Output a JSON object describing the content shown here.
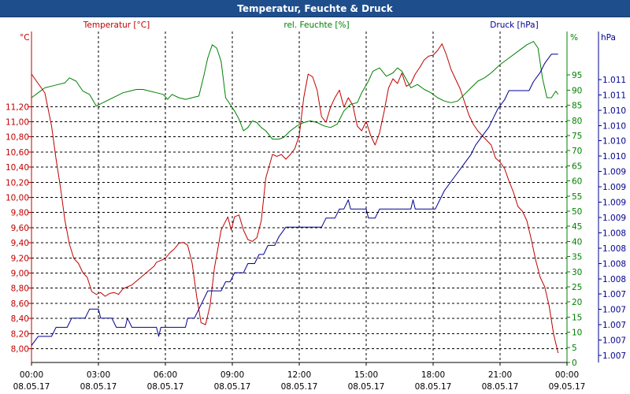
{
  "window": {
    "title": "Temperatur, Feuchte & Druck"
  },
  "colors": {
    "temperature": "#c00000",
    "humidity": "#008000",
    "pressure": "#000090",
    "axis_x": "#000000",
    "grid": "#000000",
    "titlebar": "#1f4e8c"
  },
  "chart_data": {
    "type": "line",
    "title": "Temperatur, Feuchte & Druck",
    "grid": true,
    "x_ticks": [
      {
        "time": "00:00",
        "date": "08.05.17"
      },
      {
        "time": "03:00",
        "date": "08.05.17"
      },
      {
        "time": "06:00",
        "date": "08.05.17"
      },
      {
        "time": "09:00",
        "date": "08.05.17"
      },
      {
        "time": "12:00",
        "date": "08.05.17"
      },
      {
        "time": "15:00",
        "date": "08.05.17"
      },
      {
        "time": "18:00",
        "date": "08.05.17"
      },
      {
        "time": "21:00",
        "date": "08.05.17"
      },
      {
        "time": "00:00",
        "date": "09.05.17"
      }
    ],
    "x_range_hours": [
      0,
      24
    ],
    "axes": {
      "temperature": {
        "label": "Temperatur [°C]",
        "unit": "°C",
        "range": [
          7.9,
          11.4
        ],
        "ticks": [
          "8,00",
          "8,20",
          "8,40",
          "8,60",
          "8,80",
          "9,00",
          "9,20",
          "9,40",
          "9,60",
          "9,80",
          "10,00",
          "10,20",
          "10,40",
          "10,60",
          "10,80",
          "11,00",
          "11,20"
        ]
      },
      "humidity": {
        "label": "rel. Feuchte [%]",
        "unit": "%",
        "range": [
          0,
          100
        ],
        "ticks": [
          "0",
          "5",
          "10",
          "15",
          "20",
          "25",
          "30",
          "35",
          "40",
          "45",
          "50",
          "55",
          "60",
          "65",
          "70",
          "75",
          "80",
          "85",
          "90",
          "95"
        ]
      },
      "pressure": {
        "label": "Druck [hPa]",
        "unit": "hPa",
        "ticks": [
          "1.007",
          "1.007",
          "1.007",
          "1.007",
          "1.007",
          "1.008",
          "1.008",
          "1.008",
          "1.008",
          "1.009",
          "1.009",
          "1.009",
          "1.009",
          "1.010",
          "1.010",
          "1.010",
          "1.010",
          "1.011",
          "1.011"
        ]
      }
    },
    "series": [
      {
        "name": "Temperatur [°C]",
        "axis": "temperature",
        "points": [
          [
            0,
            10.95
          ],
          [
            0.3,
            10.85
          ],
          [
            0.6,
            10.75
          ],
          [
            0.9,
            10.4
          ],
          [
            1.1,
            10.05
          ],
          [
            1.3,
            9.75
          ],
          [
            1.5,
            9.4
          ],
          [
            1.7,
            9.15
          ],
          [
            1.9,
            9.0
          ],
          [
            2.1,
            8.95
          ],
          [
            2.3,
            8.85
          ],
          [
            2.5,
            8.8
          ],
          [
            2.7,
            8.65
          ],
          [
            2.9,
            8.62
          ],
          [
            3.1,
            8.64
          ],
          [
            3.3,
            8.6
          ],
          [
            3.5,
            8.63
          ],
          [
            3.7,
            8.64
          ],
          [
            3.9,
            8.62
          ],
          [
            4.1,
            8.68
          ],
          [
            4.3,
            8.7
          ],
          [
            4.5,
            8.72
          ],
          [
            4.7,
            8.76
          ],
          [
            4.9,
            8.8
          ],
          [
            5.1,
            8.84
          ],
          [
            5.3,
            8.88
          ],
          [
            5.5,
            8.92
          ],
          [
            5.6,
            8.96
          ],
          [
            5.8,
            8.98
          ],
          [
            6.0,
            9.0
          ],
          [
            6.2,
            9.06
          ],
          [
            6.4,
            9.1
          ],
          [
            6.6,
            9.16
          ],
          [
            6.8,
            9.17
          ],
          [
            7.0,
            9.14
          ],
          [
            7.2,
            8.95
          ],
          [
            7.4,
            8.6
          ],
          [
            7.6,
            8.32
          ],
          [
            7.8,
            8.3
          ],
          [
            8.0,
            8.5
          ],
          [
            8.2,
            8.9
          ],
          [
            8.5,
            9.3
          ],
          [
            8.8,
            9.44
          ],
          [
            8.95,
            9.3
          ],
          [
            9.1,
            9.44
          ],
          [
            9.3,
            9.46
          ],
          [
            9.5,
            9.3
          ],
          [
            9.7,
            9.2
          ],
          [
            9.9,
            9.18
          ],
          [
            10.1,
            9.22
          ],
          [
            10.3,
            9.4
          ],
          [
            10.5,
            9.85
          ],
          [
            10.8,
            10.1
          ],
          [
            11.0,
            10.08
          ],
          [
            11.2,
            10.1
          ],
          [
            11.4,
            10.05
          ],
          [
            11.6,
            10.1
          ],
          [
            11.8,
            10.16
          ],
          [
            12.0,
            10.3
          ],
          [
            12.2,
            10.7
          ],
          [
            12.4,
            10.95
          ],
          [
            12.6,
            10.92
          ],
          [
            12.8,
            10.78
          ],
          [
            13.0,
            10.5
          ],
          [
            13.2,
            10.44
          ],
          [
            13.4,
            10.6
          ],
          [
            13.6,
            10.7
          ],
          [
            13.8,
            10.78
          ],
          [
            14.0,
            10.6
          ],
          [
            14.2,
            10.7
          ],
          [
            14.4,
            10.62
          ],
          [
            14.6,
            10.4
          ],
          [
            14.8,
            10.35
          ],
          [
            15.0,
            10.45
          ],
          [
            15.2,
            10.3
          ],
          [
            15.4,
            10.2
          ],
          [
            15.6,
            10.33
          ],
          [
            15.8,
            10.55
          ],
          [
            16.0,
            10.8
          ],
          [
            16.2,
            10.9
          ],
          [
            16.4,
            10.85
          ],
          [
            16.6,
            10.96
          ],
          [
            16.8,
            10.82
          ],
          [
            17.0,
            10.85
          ],
          [
            17.2,
            10.95
          ],
          [
            17.4,
            11.02
          ],
          [
            17.6,
            11.1
          ],
          [
            17.8,
            11.14
          ],
          [
            18.0,
            11.15
          ],
          [
            18.2,
            11.2
          ],
          [
            18.4,
            11.27
          ],
          [
            18.6,
            11.15
          ],
          [
            18.8,
            11.0
          ],
          [
            19.0,
            10.9
          ],
          [
            19.2,
            10.8
          ],
          [
            19.4,
            10.66
          ],
          [
            19.6,
            10.52
          ],
          [
            19.8,
            10.42
          ],
          [
            20.0,
            10.35
          ],
          [
            20.2,
            10.3
          ],
          [
            20.4,
            10.25
          ],
          [
            20.6,
            10.2
          ],
          [
            20.8,
            10.06
          ],
          [
            21.0,
            10.02
          ],
          [
            21.2,
            9.95
          ],
          [
            21.4,
            9.82
          ],
          [
            21.6,
            9.7
          ],
          [
            21.8,
            9.55
          ],
          [
            22.0,
            9.5
          ],
          [
            22.2,
            9.4
          ],
          [
            22.4,
            9.2
          ],
          [
            22.6,
            8.98
          ],
          [
            22.8,
            8.8
          ],
          [
            23.0,
            8.7
          ],
          [
            23.2,
            8.5
          ],
          [
            23.4,
            8.2
          ],
          [
            23.6,
            8.0
          ]
        ]
      },
      {
        "name": "rel. Feuchte [%]",
        "axis": "humidity",
        "points": [
          [
            0,
            80
          ],
          [
            0.3,
            81.5
          ],
          [
            0.6,
            83
          ],
          [
            0.9,
            83.5
          ],
          [
            1.2,
            84
          ],
          [
            1.5,
            84.5
          ],
          [
            1.7,
            86
          ],
          [
            2.0,
            85
          ],
          [
            2.3,
            82
          ],
          [
            2.6,
            81
          ],
          [
            2.9,
            77.5
          ],
          [
            3.2,
            78.5
          ],
          [
            3.5,
            79.5
          ],
          [
            3.8,
            80.5
          ],
          [
            4.1,
            81.5
          ],
          [
            4.4,
            82
          ],
          [
            4.7,
            82.5
          ],
          [
            5.0,
            82.5
          ],
          [
            5.3,
            82
          ],
          [
            5.6,
            81.5
          ],
          [
            5.9,
            81
          ],
          [
            6.1,
            79.5
          ],
          [
            6.3,
            81
          ],
          [
            6.6,
            80
          ],
          [
            6.9,
            79.5
          ],
          [
            7.2,
            80
          ],
          [
            7.5,
            80.5
          ],
          [
            7.7,
            86
          ],
          [
            7.9,
            92
          ],
          [
            8.1,
            96
          ],
          [
            8.3,
            95
          ],
          [
            8.5,
            91
          ],
          [
            8.7,
            80
          ],
          [
            8.9,
            78
          ],
          [
            9.1,
            76
          ],
          [
            9.3,
            73.5
          ],
          [
            9.5,
            70
          ],
          [
            9.7,
            71
          ],
          [
            9.9,
            73
          ],
          [
            10.1,
            72.5
          ],
          [
            10.3,
            71
          ],
          [
            10.5,
            70
          ],
          [
            10.8,
            67.5
          ],
          [
            11.1,
            67.5
          ],
          [
            11.3,
            68
          ],
          [
            11.6,
            70
          ],
          [
            11.9,
            71.5
          ],
          [
            12.2,
            72.5
          ],
          [
            12.5,
            73
          ],
          [
            12.8,
            72.5
          ],
          [
            13.1,
            71.5
          ],
          [
            13.4,
            71
          ],
          [
            13.7,
            72
          ],
          [
            14.0,
            76
          ],
          [
            14.3,
            78
          ],
          [
            14.6,
            78.5
          ],
          [
            14.8,
            81.5
          ],
          [
            15.1,
            85
          ],
          [
            15.3,
            88
          ],
          [
            15.6,
            89
          ],
          [
            15.9,
            86.5
          ],
          [
            16.2,
            87.5
          ],
          [
            16.4,
            89
          ],
          [
            16.6,
            88
          ],
          [
            16.8,
            85.5
          ],
          [
            17.0,
            83
          ],
          [
            17.3,
            84
          ],
          [
            17.6,
            82.5
          ],
          [
            17.9,
            81.5
          ],
          [
            18.2,
            80
          ],
          [
            18.5,
            79
          ],
          [
            18.8,
            78.5
          ],
          [
            19.1,
            79
          ],
          [
            19.4,
            81
          ],
          [
            19.7,
            83
          ],
          [
            20.0,
            85
          ],
          [
            20.3,
            86
          ],
          [
            20.6,
            87.5
          ],
          [
            21.0,
            90
          ],
          [
            21.4,
            92
          ],
          [
            21.8,
            94
          ],
          [
            22.2,
            96
          ],
          [
            22.5,
            97
          ],
          [
            22.7,
            95
          ],
          [
            22.9,
            86
          ],
          [
            23.1,
            80
          ],
          [
            23.3,
            80
          ],
          [
            23.5,
            82
          ],
          [
            23.6,
            81
          ]
        ]
      },
      {
        "name": "Druck [hPa]",
        "axis": "pressure",
        "step_unit": "hPa",
        "points": [
          [
            0,
            1
          ],
          [
            0.3,
            2
          ],
          [
            0.9,
            2
          ],
          [
            1.1,
            3
          ],
          [
            1.6,
            3
          ],
          [
            1.8,
            4
          ],
          [
            2.4,
            4
          ],
          [
            2.6,
            5
          ],
          [
            3.0,
            5
          ],
          [
            3.1,
            4
          ],
          [
            3.6,
            4
          ],
          [
            3.8,
            3
          ],
          [
            4.2,
            3
          ],
          [
            4.3,
            4
          ],
          [
            4.5,
            3
          ],
          [
            5.6,
            3
          ],
          [
            5.7,
            2
          ],
          [
            5.8,
            3
          ],
          [
            6.9,
            3
          ],
          [
            7.0,
            4
          ],
          [
            7.3,
            4
          ],
          [
            7.5,
            5
          ],
          [
            7.7,
            6
          ],
          [
            7.9,
            7
          ],
          [
            8.5,
            7
          ],
          [
            8.7,
            8
          ],
          [
            8.9,
            8
          ],
          [
            9.1,
            9
          ],
          [
            9.5,
            9
          ],
          [
            9.7,
            10
          ],
          [
            10.0,
            10
          ],
          [
            10.2,
            11
          ],
          [
            10.4,
            11
          ],
          [
            10.6,
            12
          ],
          [
            10.9,
            12
          ],
          [
            11.1,
            13
          ],
          [
            11.4,
            14
          ],
          [
            13.0,
            14
          ],
          [
            13.2,
            15
          ],
          [
            13.6,
            15
          ],
          [
            13.8,
            16
          ],
          [
            14.0,
            16
          ],
          [
            14.2,
            17
          ],
          [
            14.3,
            16
          ],
          [
            15.0,
            16
          ],
          [
            15.1,
            15
          ],
          [
            15.4,
            15
          ],
          [
            15.6,
            16
          ],
          [
            17.0,
            16
          ],
          [
            17.1,
            17
          ],
          [
            17.2,
            16
          ],
          [
            18.1,
            16
          ],
          [
            18.3,
            17
          ],
          [
            18.5,
            18
          ],
          [
            18.8,
            19
          ],
          [
            19.1,
            20
          ],
          [
            19.4,
            21
          ],
          [
            19.7,
            22
          ],
          [
            19.9,
            23
          ],
          [
            20.2,
            24
          ],
          [
            20.5,
            25
          ],
          [
            20.7,
            26
          ],
          [
            20.9,
            27
          ],
          [
            21.2,
            28
          ],
          [
            21.4,
            29
          ],
          [
            22.3,
            29
          ],
          [
            22.5,
            30
          ],
          [
            22.8,
            31
          ],
          [
            23.0,
            32
          ],
          [
            23.3,
            33
          ],
          [
            23.6,
            33
          ]
        ]
      }
    ]
  }
}
